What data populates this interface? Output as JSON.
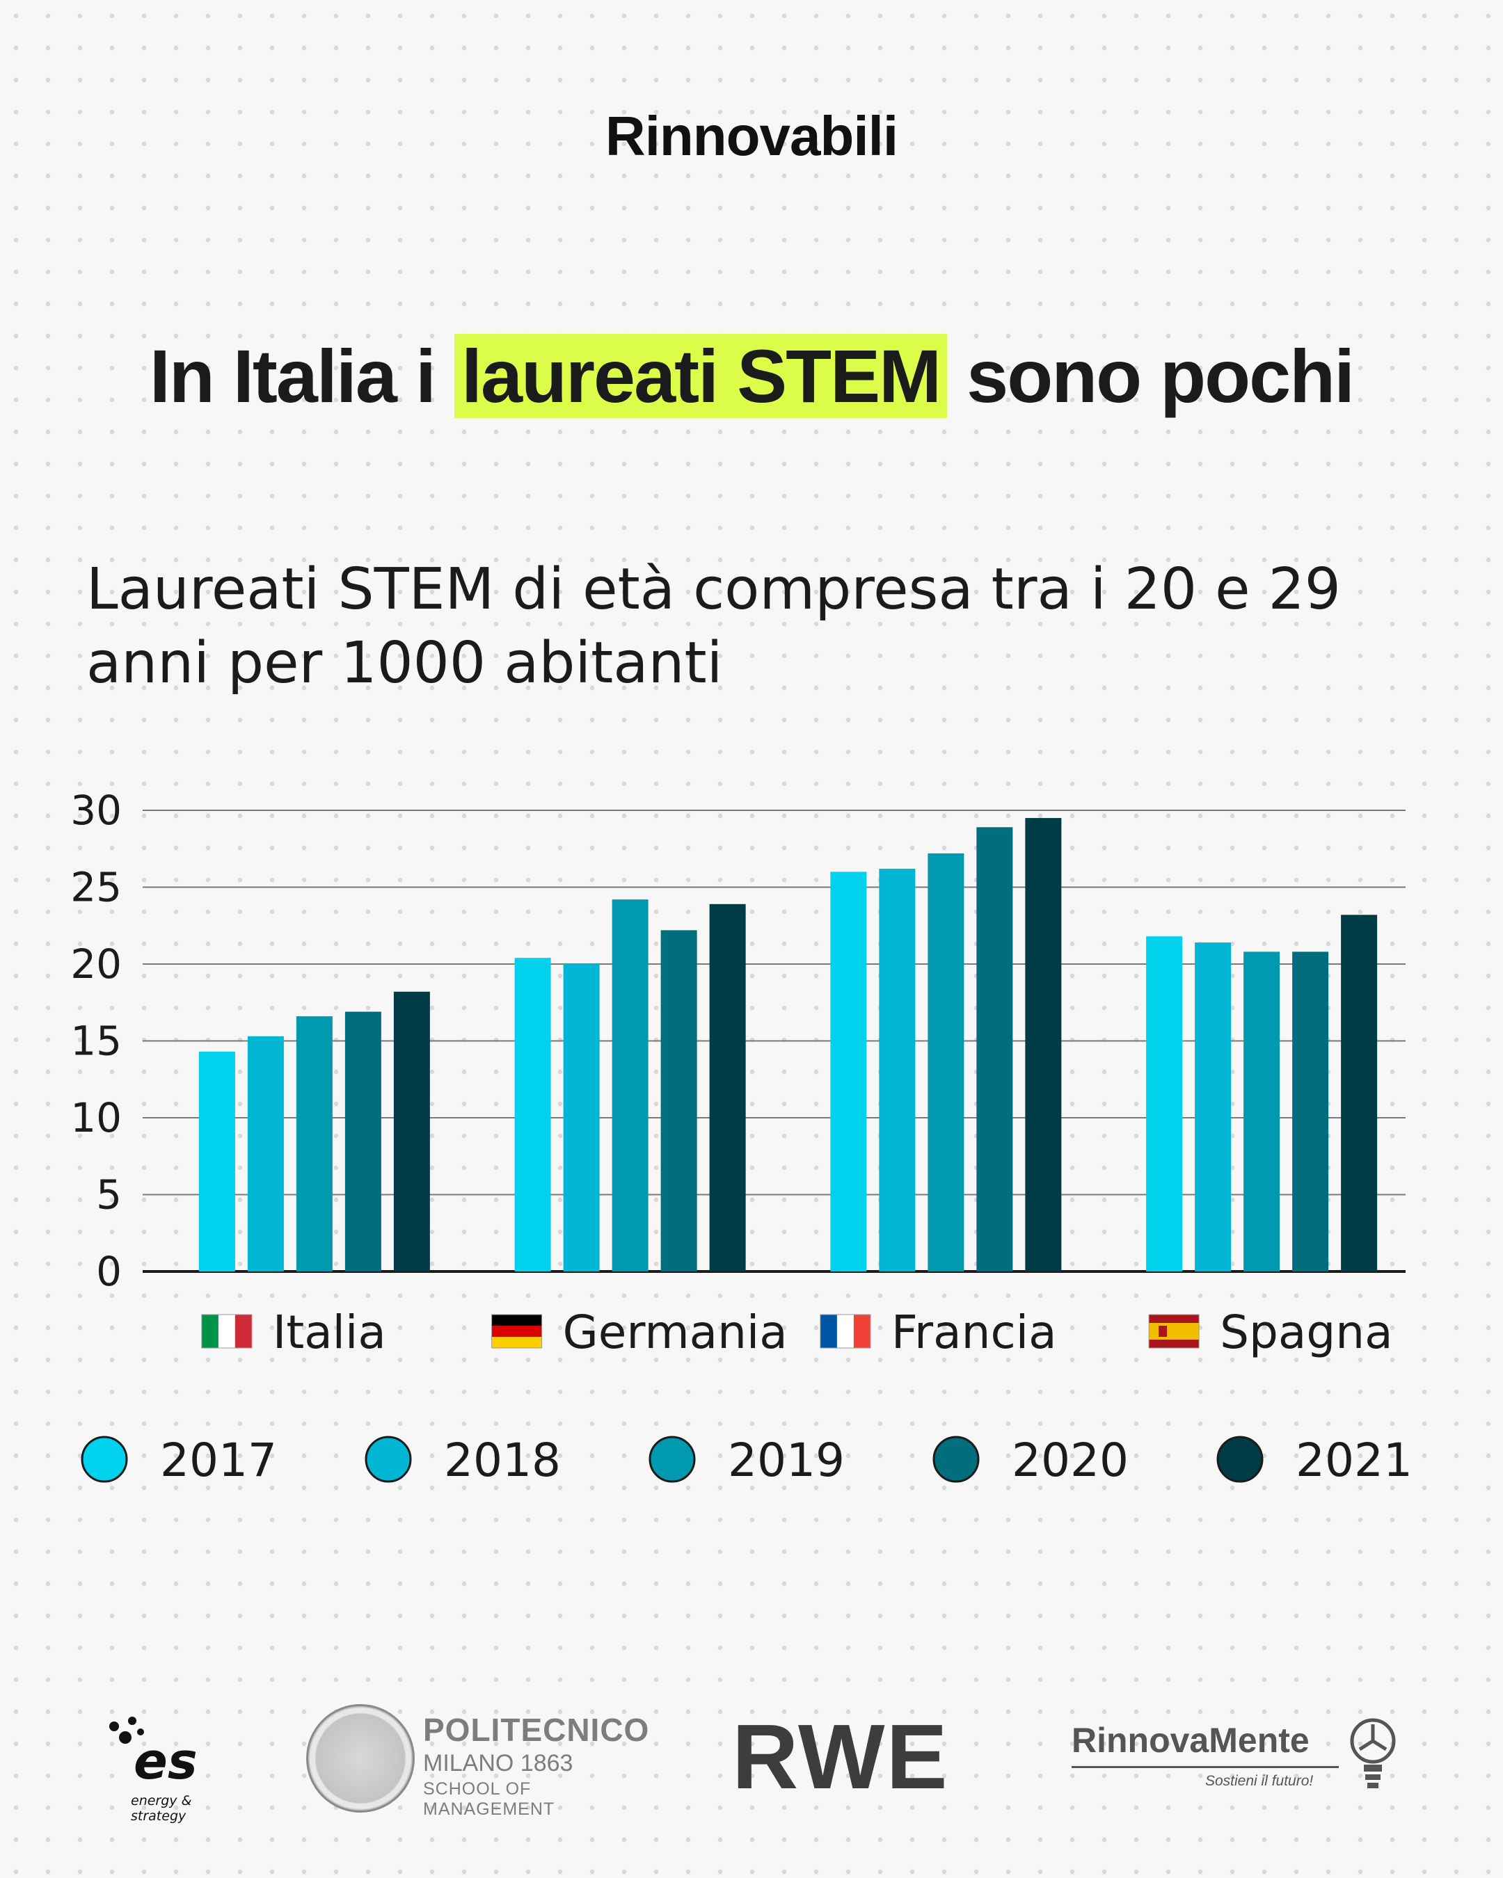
{
  "brand": "Rinnovabili",
  "headline": {
    "before": "In Italia i ",
    "highlight": "laureati STEM",
    "after": " sono pochi"
  },
  "colors": {
    "highlight": "#dcfc4a",
    "grid": "#7a7a7a",
    "axis": "#1b1b1b"
  },
  "chart_data": {
    "type": "bar",
    "title": "Laureati STEM di età compresa tra i 20 e 29 anni per 1000 abitanti",
    "categories": [
      "Italia",
      "Germania",
      "Francia",
      "Spagna"
    ],
    "category_flags": [
      "italy-flag-icon",
      "germany-flag-icon",
      "france-flag-icon",
      "spain-flag-icon"
    ],
    "series": [
      {
        "name": "2017",
        "color": "#00d2ee",
        "values": [
          14.3,
          20.4,
          26.0,
          21.8
        ]
      },
      {
        "name": "2018",
        "color": "#00b6d2",
        "values": [
          15.3,
          20.0,
          26.2,
          21.4
        ]
      },
      {
        "name": "2019",
        "color": "#0099b0",
        "values": [
          16.6,
          24.2,
          27.2,
          20.8
        ]
      },
      {
        "name": "2020",
        "color": "#006e7d",
        "values": [
          16.9,
          22.2,
          28.9,
          20.8
        ]
      },
      {
        "name": "2021",
        "color": "#003c45",
        "values": [
          18.2,
          23.9,
          29.5,
          23.2
        ]
      }
    ],
    "yticks": [
      0,
      5,
      10,
      15,
      20,
      25,
      30
    ],
    "ylim": [
      0,
      30
    ],
    "xlabel": "",
    "ylabel": "",
    "grid": true,
    "legend": "bottom"
  },
  "footer": {
    "es": {
      "mark": "es",
      "tagline": "energy & strategy"
    },
    "polimi": {
      "line1": "POLITECNICO",
      "line2": "MILANO 1863",
      "line3": "SCHOOL OF MANAGEMENT"
    },
    "rwe": "RWE",
    "rinnovamente": {
      "name": "RinnovaMente",
      "tagline": "Sostieni il futuro!"
    }
  }
}
